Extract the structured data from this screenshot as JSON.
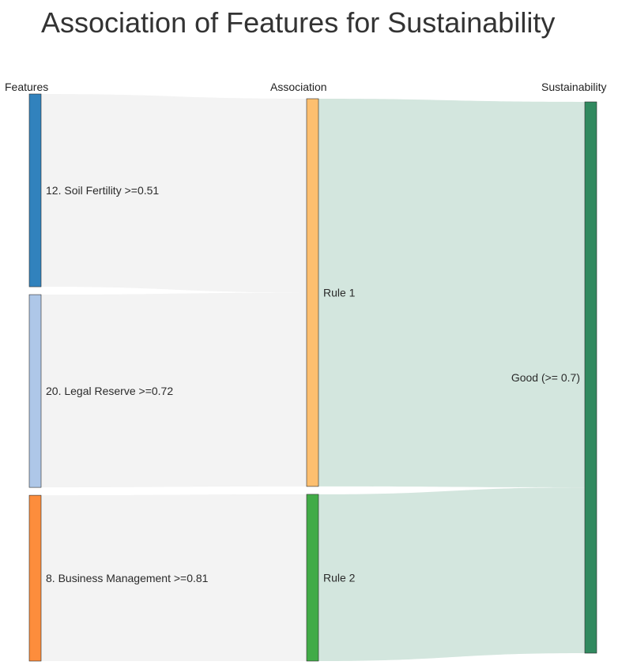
{
  "title": "Association of Features for Sustainability",
  "columns": {
    "features": "Features",
    "association": "Association",
    "sustainability": "Sustainability"
  },
  "chart_data": {
    "type": "sankey",
    "nodes": [
      {
        "id": "soil",
        "label": "12. Soil Fertility >=0.51",
        "color": "#3182bd",
        "column": 0
      },
      {
        "id": "legal",
        "label": "20. Legal Reserve >=0.72",
        "color": "#aec7e8",
        "column": 0
      },
      {
        "id": "business",
        "label": "8. Business Management >=0.81",
        "color": "#fd8d3c",
        "column": 0
      },
      {
        "id": "rule1",
        "label": "Rule 1",
        "color": "#fdbf6f",
        "column": 1
      },
      {
        "id": "rule2",
        "label": "Rule 2",
        "color": "#41ab47",
        "column": 1
      },
      {
        "id": "good",
        "label": "Good (>= 0.7)",
        "color": "#31895f",
        "column": 2
      }
    ],
    "links": [
      {
        "source": "soil",
        "target": "rule1",
        "value": 1,
        "color": "#f3f3f3"
      },
      {
        "source": "legal",
        "target": "rule1",
        "value": 1,
        "color": "#f3f3f3"
      },
      {
        "source": "business",
        "target": "rule2",
        "value": 0.86,
        "color": "#f3f3f3"
      },
      {
        "source": "rule1",
        "target": "good",
        "value": 2,
        "color": "#d3e6de"
      },
      {
        "source": "rule2",
        "target": "good",
        "value": 0.86,
        "color": "#d3e6de"
      }
    ]
  }
}
